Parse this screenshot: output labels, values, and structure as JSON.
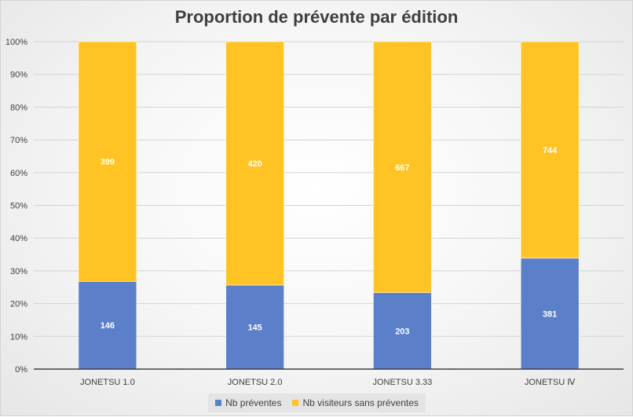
{
  "chart_data": {
    "type": "bar",
    "stacked": "percent",
    "title": "Proportion de prévente par édition",
    "categories": [
      "JONETSU 1.0",
      "JONETSU 2.0",
      "JONETSU 3.33",
      "JONETSU Ⅳ"
    ],
    "series": [
      {
        "name": "Nb préventes",
        "values": [
          146,
          145,
          203,
          381
        ],
        "color": "#5b7fc9"
      },
      {
        "name": "Nb visiteurs sans préventes",
        "values": [
          399,
          420,
          667,
          744
        ],
        "color": "#ffc423"
      }
    ],
    "y_ticks": [
      "0%",
      "10%",
      "20%",
      "30%",
      "40%",
      "50%",
      "60%",
      "70%",
      "80%",
      "90%",
      "100%"
    ],
    "ylim": [
      0,
      100
    ],
    "grid": true,
    "legend_position": "bottom"
  }
}
